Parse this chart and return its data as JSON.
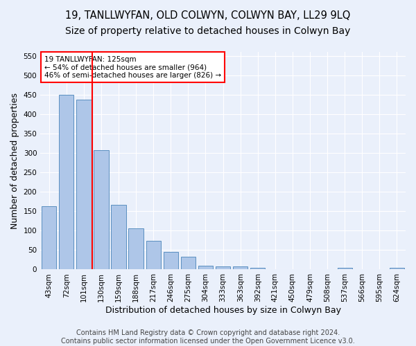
{
  "title": "19, TANLLWYFAN, OLD COLWYN, COLWYN BAY, LL29 9LQ",
  "subtitle": "Size of property relative to detached houses in Colwyn Bay",
  "xlabel": "Distribution of detached houses by size in Colwyn Bay",
  "ylabel": "Number of detached properties",
  "footer_line1": "Contains HM Land Registry data © Crown copyright and database right 2024.",
  "footer_line2": "Contains public sector information licensed under the Open Government Licence v3.0.",
  "categories": [
    "43sqm",
    "72sqm",
    "101sqm",
    "130sqm",
    "159sqm",
    "188sqm",
    "217sqm",
    "246sqm",
    "275sqm",
    "304sqm",
    "333sqm",
    "363sqm",
    "392sqm",
    "421sqm",
    "450sqm",
    "479sqm",
    "508sqm",
    "537sqm",
    "566sqm",
    "595sqm",
    "624sqm"
  ],
  "values": [
    163,
    450,
    438,
    307,
    167,
    106,
    74,
    45,
    33,
    10,
    8,
    8,
    5,
    0,
    0,
    0,
    0,
    4,
    0,
    0,
    5
  ],
  "bar_color": "#aec6e8",
  "bar_edge_color": "#5a8fc0",
  "vline_color": "red",
  "annotation_text": "19 TANLLWYFAN: 125sqm\n← 54% of detached houses are smaller (964)\n46% of semi-detached houses are larger (826) →",
  "ylim": [
    0,
    560
  ],
  "yticks": [
    0,
    50,
    100,
    150,
    200,
    250,
    300,
    350,
    400,
    450,
    500,
    550
  ],
  "bg_color": "#eaf0fb",
  "plot_bg_color": "#eaf0fb",
  "grid_color": "#ffffff",
  "title_fontsize": 10.5,
  "axis_label_fontsize": 9,
  "tick_fontsize": 7.5,
  "footer_fontsize": 7
}
